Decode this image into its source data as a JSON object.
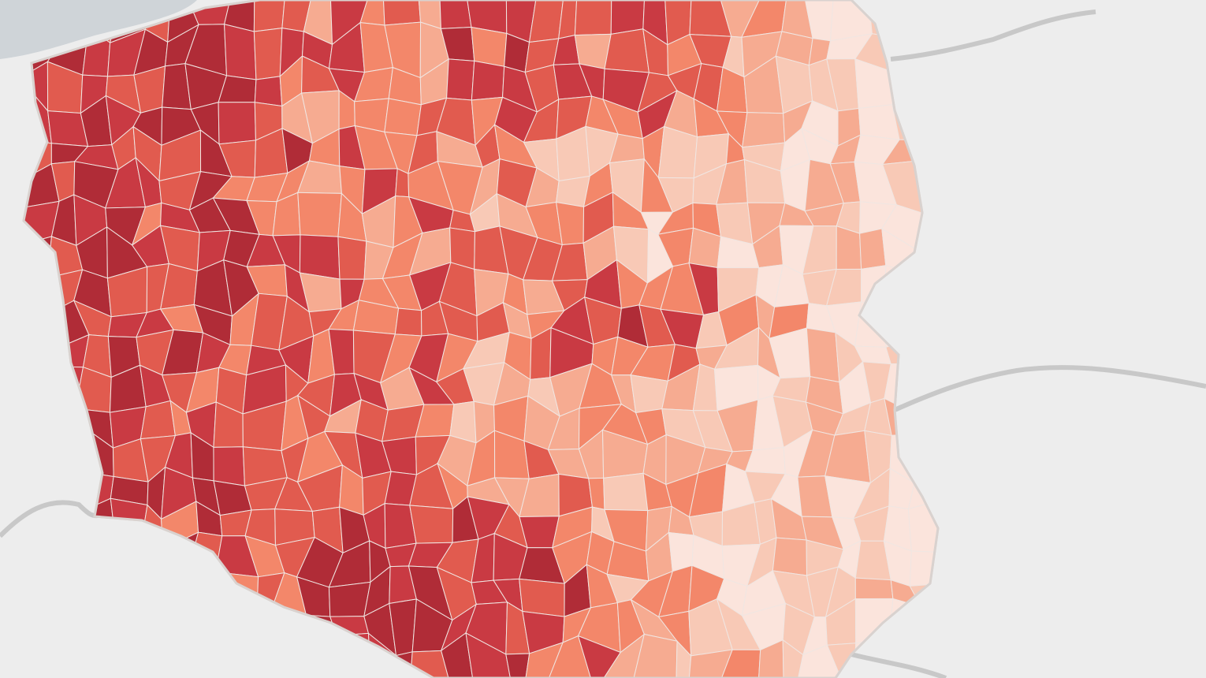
{
  "map": {
    "background": "#ededed",
    "sea_color": "#cfd4d8",
    "border_color": "#c8c8c8",
    "district_stroke": "#f0e6e2",
    "palette": [
      "#fbe4dc",
      "#f8c9b6",
      "#f6ab91",
      "#f3876a",
      "#e15b4f",
      "#c93a43",
      "#b02c37"
    ],
    "levels_note_hidden": false
  }
}
